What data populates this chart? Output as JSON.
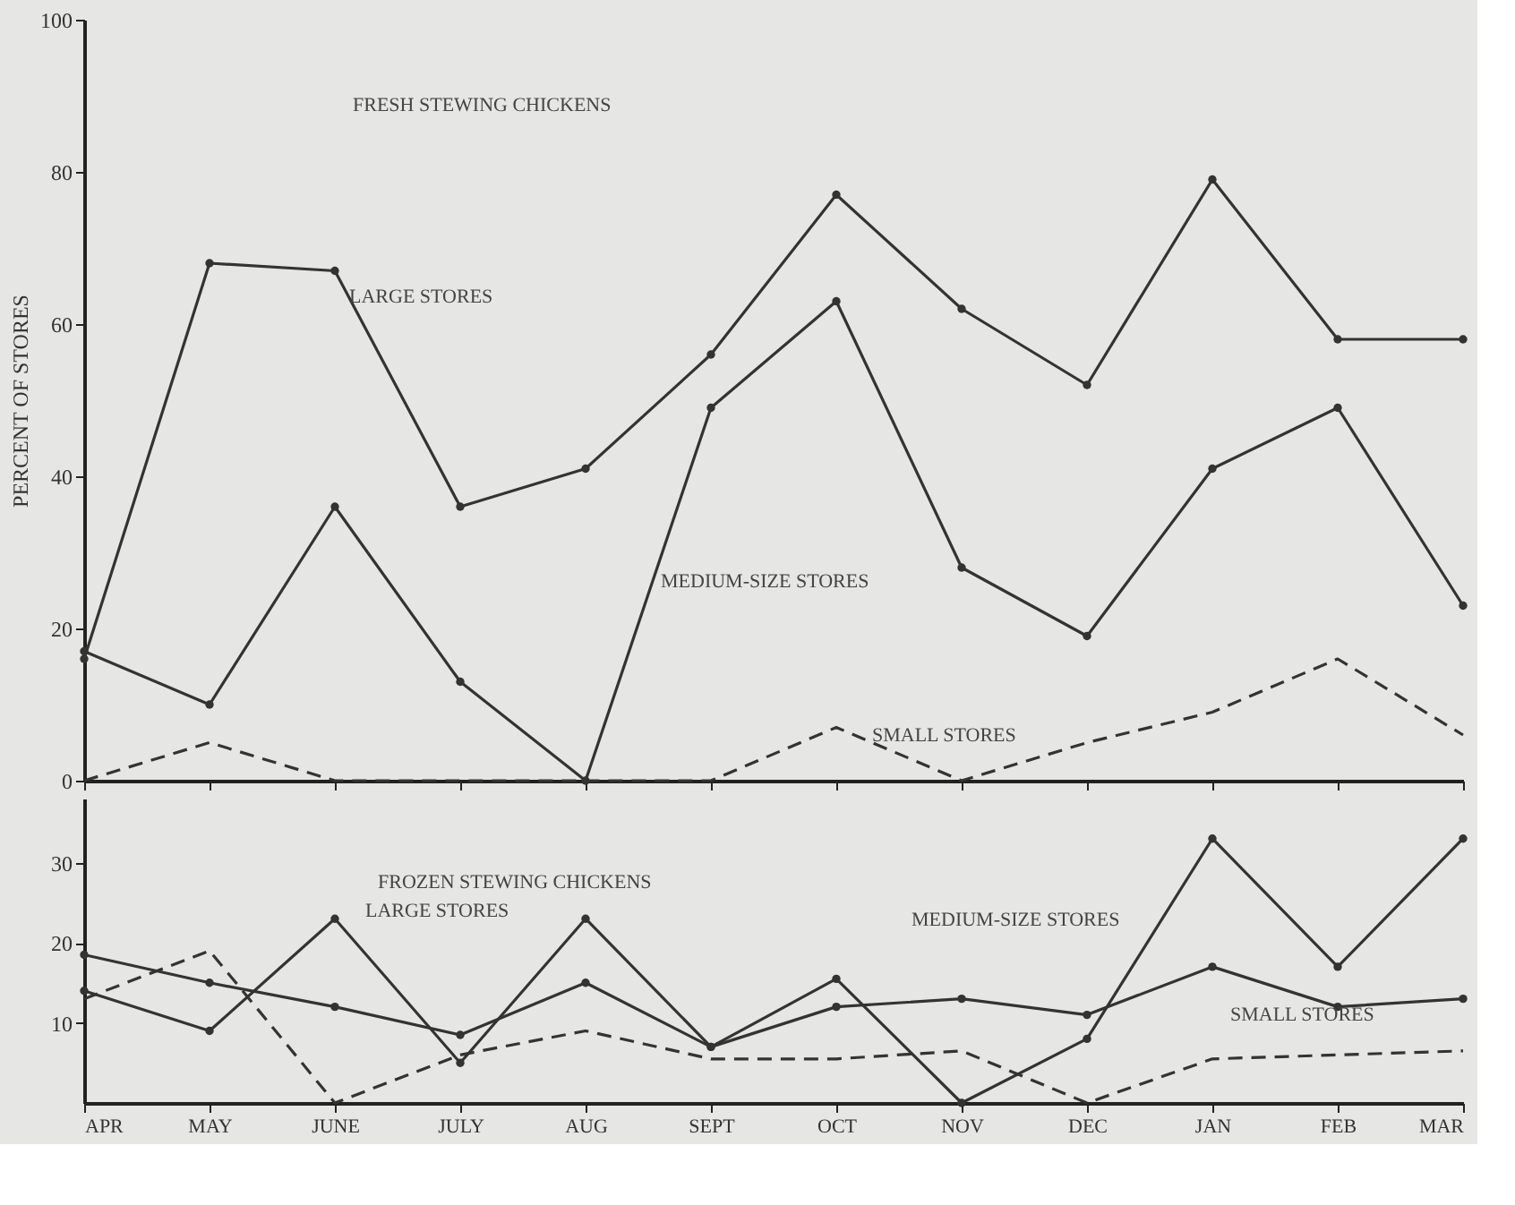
{
  "chart_data": [
    {
      "type": "line",
      "title": "FRESH STEWING CHICKENS",
      "ylabel": "PERCENT OF STORES",
      "categories": [
        null,
        null,
        null,
        null,
        null,
        null,
        null,
        null,
        null,
        null,
        null,
        null
      ],
      "series": [
        {
          "color": "#333333",
          "line_style": "solid",
          "marker": "circle",
          "values": [
            16,
            68,
            67,
            36,
            41,
            56,
            77,
            62,
            52,
            79,
            58,
            58
          ]
        },
        {
          "color": "#333333",
          "line_style": "solid",
          "marker": "circle",
          "values": [
            17,
            10,
            36,
            13,
            0,
            49,
            63,
            28,
            19,
            41,
            49,
            23
          ]
        },
        {
          "color": "#333333",
          "line_style": "dashed",
          "marker": "none",
          "values": [
            0,
            5,
            0,
            0,
            0,
            0,
            7,
            0,
            5,
            9,
            16,
            6
          ]
        }
      ],
      "annotations": [
        "LARGE STORES",
        "MEDIUM-SIZE STORES",
        "SMALL STORES"
      ],
      "ylim": [
        0,
        100
      ],
      "yticks": [
        0,
        20,
        40,
        60,
        80,
        100
      ],
      "tick_labels": "y",
      "grid": false,
      "legend": false
    },
    {
      "type": "line",
      "title": "FROZEN STEWING CHICKENS",
      "categories": [
        "APR",
        "MAY",
        "JUNE",
        "JULY",
        "AUG",
        "SEPT",
        "OCT",
        "NOV",
        "DEC",
        "JAN",
        "FEB",
        "MAR"
      ],
      "series": [
        {
          "color": "#333333",
          "line_style": "solid",
          "marker": "circle",
          "values": [
            14,
            9,
            23,
            5,
            23,
            7,
            12,
            13,
            11,
            17,
            12,
            13
          ]
        },
        {
          "color": "#333333",
          "line_style": "solid",
          "marker": "circle",
          "values": [
            18.5,
            15,
            12,
            8.5,
            15,
            7,
            15.5,
            0,
            8,
            33,
            17,
            33
          ]
        },
        {
          "color": "#333333",
          "line_style": "dashed",
          "marker": "none",
          "values": [
            13,
            19,
            0,
            6,
            9,
            5.5,
            5.5,
            6.5,
            0,
            5.5,
            6,
            6.5
          ]
        }
      ],
      "annotations": [
        "LARGE STORES",
        "MEDIUM-SIZE STORES",
        "SMALL STORES"
      ],
      "ylim": [
        0,
        38
      ],
      "yticks": [
        10,
        20,
        30
      ],
      "grid": false,
      "legend": false
    }
  ]
}
